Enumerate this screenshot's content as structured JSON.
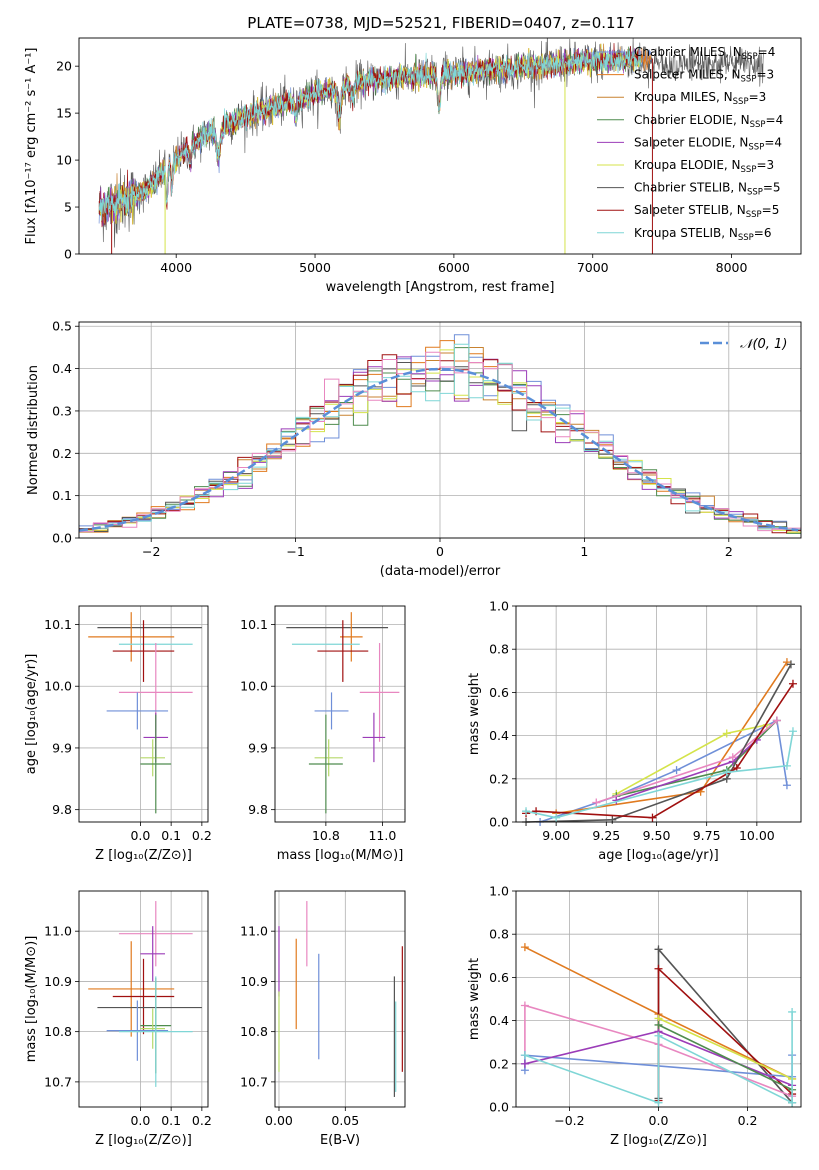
{
  "figure_title": "PLATE=0738, MJD=52521, FIBERID=0407, z=0.117",
  "colors": {
    "series": [
      "#6f8fd8",
      "#e07a1f",
      "#c88230",
      "#4f8c4f",
      "#9b3cb8",
      "#d4e34a",
      "#555555",
      "#a01010",
      "#7fd6d6"
    ],
    "alt_blue": "#6f8fd8",
    "alt_pink": "#e887c0",
    "alt_olive": "#b6d96a",
    "normal_curve": "#5a8fd8",
    "grid": "#b0b0b0"
  },
  "chart_data": [
    {
      "id": "spectrum",
      "type": "line",
      "xlabel": "wavelength [Angstrom, rest frame]",
      "ylabel": "Flux [fλ10⁻¹⁷ erg cm⁻² s⁻¹ A⁻¹]",
      "xlim": [
        3300,
        8500
      ],
      "ylim": [
        0,
        23
      ],
      "xticks": [
        4000,
        5000,
        6000,
        7000,
        8000
      ],
      "yticks": [
        0,
        5,
        10,
        15,
        20
      ],
      "grid": false,
      "legend": "right",
      "continuum_knots": [
        [
          3450,
          4.8
        ],
        [
          3650,
          5.8
        ],
        [
          3800,
          7.0
        ],
        [
          3950,
          9.5
        ],
        [
          4100,
          11.5
        ],
        [
          4300,
          13.5
        ],
        [
          4600,
          15.2
        ],
        [
          5000,
          17.0
        ],
        [
          5400,
          18.5
        ],
        [
          6000,
          19.3
        ],
        [
          6600,
          20.0
        ],
        [
          7000,
          20.5
        ],
        [
          7400,
          20.8
        ]
      ],
      "absorption_lines": [
        [
          3933,
          3.5,
          6
        ],
        [
          3968,
          3.0,
          6
        ],
        [
          4102,
          1.5,
          8
        ],
        [
          4304,
          3.0,
          15
        ],
        [
          4861,
          1.5,
          10
        ],
        [
          5175,
          3.0,
          12
        ],
        [
          5270,
          1.5,
          10
        ],
        [
          5893,
          3.5,
          10
        ]
      ],
      "legend_entries": [
        {
          "label": "Chabrier MILES, N",
          "sub": "SSP",
          "value": "=4",
          "color": "#6f8fd8"
        },
        {
          "label": "Salpeter MILES, N",
          "sub": "SSP",
          "value": "=3",
          "color": "#e07a1f"
        },
        {
          "label": "Kroupa MILES, N",
          "sub": "SSP",
          "value": "=3",
          "color": "#c88230"
        },
        {
          "label": "Chabrier ELODIE, N",
          "sub": "SSP",
          "value": "=4",
          "color": "#4f8c4f"
        },
        {
          "label": "Salpeter ELODIE, N",
          "sub": "SSP",
          "value": "=4",
          "color": "#9b3cb8"
        },
        {
          "label": "Kroupa ELODIE, N",
          "sub": "SSP",
          "value": "=3",
          "color": "#d4e34a"
        },
        {
          "label": "Chabrier STELIB, N",
          "sub": "SSP",
          "value": "=5",
          "color": "#555555"
        },
        {
          "label": "Salpeter STELIB, N",
          "sub": "SSP",
          "value": "=5",
          "color": "#a01010"
        },
        {
          "label": "Kroupa STELIB, N",
          "sub": "SSP",
          "value": "=6",
          "color": "#7fd6d6"
        }
      ]
    },
    {
      "id": "residuals",
      "type": "line",
      "xlabel": "(data-model)/error",
      "ylabel": "Normed distribution",
      "xlim": [
        -2.5,
        2.5
      ],
      "ylim": [
        0,
        0.51
      ],
      "xticks": [
        -2,
        -1,
        0,
        1,
        2
      ],
      "yticks": [
        0.0,
        0.1,
        0.2,
        0.3,
        0.4,
        0.5
      ],
      "grid": true,
      "legend": "top-right",
      "legend_label": "𝒩(0, 1)",
      "bin_width": 0.1
    },
    {
      "id": "age_vs_Z",
      "type": "scatter",
      "xlabel": "Z [log₁₀(Z/Z⊙)]",
      "ylabel": "age  [log₁₀(age/yr)]",
      "xlim": [
        -0.2,
        0.22
      ],
      "ylim": [
        9.78,
        10.13
      ],
      "xticks": [
        0.0,
        0.1,
        0.2
      ],
      "yticks": [
        9.8,
        9.9,
        10.0,
        10.1
      ],
      "grid": true,
      "points": [
        {
          "x": 0.03,
          "y": 10.095,
          "xerr": 0.17,
          "yerr": 0.0,
          "color": "#555555"
        },
        {
          "x": -0.03,
          "y": 10.08,
          "xerr": 0.14,
          "yerr": 0.04,
          "color": "#e07a1f"
        },
        {
          "x": 0.05,
          "y": 10.068,
          "xerr": 0.12,
          "yerr": 0.0,
          "color": "#7fd6d6"
        },
        {
          "x": 0.01,
          "y": 10.057,
          "xerr": 0.1,
          "yerr": 0.05,
          "color": "#a01010"
        },
        {
          "x": 0.05,
          "y": 9.99,
          "xerr": 0.12,
          "yerr": 0.08,
          "color": "#e887c0"
        },
        {
          "x": -0.01,
          "y": 9.96,
          "xerr": 0.1,
          "yerr": 0.03,
          "color": "#6f8fd8"
        },
        {
          "x": 0.05,
          "y": 9.917,
          "xerr": 0.04,
          "yerr": 0.04,
          "color": "#9b3cb8"
        },
        {
          "x": 0.04,
          "y": 9.884,
          "xerr": 0.04,
          "yerr": 0.03,
          "color": "#b6d96a"
        },
        {
          "x": 0.05,
          "y": 9.874,
          "xerr": 0.05,
          "yerr": 0.08,
          "color": "#4f8c4f"
        }
      ]
    },
    {
      "id": "age_vs_mass",
      "type": "scatter",
      "xlabel": "mass [log₁₀(M/M⊙)]",
      "ylabel": "",
      "xlim": [
        10.62,
        11.08
      ],
      "ylim": [
        9.78,
        10.13
      ],
      "xticks": [
        10.8,
        11.0
      ],
      "yticks": [
        9.8,
        9.9,
        10.0,
        10.1
      ],
      "grid": true,
      "points": [
        {
          "x": 10.84,
          "y": 10.095,
          "xerr": 0.18,
          "yerr": 0.0,
          "color": "#555555"
        },
        {
          "x": 10.89,
          "y": 10.08,
          "xerr": 0.04,
          "yerr": 0.04,
          "color": "#e07a1f"
        },
        {
          "x": 10.8,
          "y": 10.068,
          "xerr": 0.12,
          "yerr": 0.0,
          "color": "#7fd6d6"
        },
        {
          "x": 10.86,
          "y": 10.057,
          "xerr": 0.09,
          "yerr": 0.05,
          "color": "#a01010"
        },
        {
          "x": 10.99,
          "y": 9.99,
          "xerr": 0.07,
          "yerr": 0.08,
          "color": "#e887c0"
        },
        {
          "x": 10.82,
          "y": 9.96,
          "xerr": 0.06,
          "yerr": 0.03,
          "color": "#6f8fd8"
        },
        {
          "x": 10.97,
          "y": 9.917,
          "xerr": 0.04,
          "yerr": 0.04,
          "color": "#9b3cb8"
        },
        {
          "x": 10.81,
          "y": 9.884,
          "xerr": 0.05,
          "yerr": 0.03,
          "color": "#b6d96a"
        },
        {
          "x": 10.8,
          "y": 9.874,
          "xerr": 0.06,
          "yerr": 0.08,
          "color": "#4f8c4f"
        }
      ]
    },
    {
      "id": "mass_weight_vs_age",
      "type": "line",
      "xlabel": "age  [log₁₀(age/yr)]",
      "ylabel": "mass weight",
      "xlim": [
        8.8,
        10.22
      ],
      "ylim": [
        0,
        1.0
      ],
      "xticks": [
        9.0,
        9.25,
        9.5,
        9.75,
        10.0
      ],
      "yticks": [
        0.0,
        0.2,
        0.4,
        0.6,
        0.8,
        1.0
      ],
      "grid": true,
      "series": [
        {
          "color": "#6f8fd8",
          "x": [
            8.92,
            9.3,
            9.6,
            10.1,
            10.15
          ],
          "y": [
            0.0,
            0.12,
            0.24,
            0.47,
            0.17
          ]
        },
        {
          "color": "#e07a1f",
          "x": [
            9.0,
            9.72,
            10.15
          ],
          "y": [
            0.04,
            0.14,
            0.74
          ]
        },
        {
          "color": "#d4e34a",
          "x": [
            9.3,
            9.85,
            10.05
          ],
          "y": [
            0.13,
            0.41,
            0.45
          ]
        },
        {
          "color": "#4f8c4f",
          "x": [
            9.3,
            9.85,
            10.1
          ],
          "y": [
            0.12,
            0.24,
            0.47
          ]
        },
        {
          "color": "#9b3cb8",
          "x": [
            9.3,
            9.88,
            10.0
          ],
          "y": [
            0.1,
            0.28,
            0.38
          ]
        },
        {
          "color": "#e887c0",
          "x": [
            9.2,
            9.88,
            10.1
          ],
          "y": [
            0.09,
            0.3,
            0.47
          ]
        },
        {
          "color": "#555555",
          "x": [
            8.85,
            9.28,
            9.85,
            10.17
          ],
          "y": [
            0.0,
            0.01,
            0.2,
            0.73
          ]
        },
        {
          "color": "#a01010",
          "x": [
            8.85,
            8.9,
            9.48,
            9.9,
            10.18
          ],
          "y": [
            0.04,
            0.05,
            0.02,
            0.25,
            0.64
          ]
        },
        {
          "color": "#7fd6d6",
          "x": [
            8.85,
            9.0,
            9.85,
            10.15,
            10.18
          ],
          "y": [
            0.05,
            0.02,
            0.23,
            0.26,
            0.42
          ]
        }
      ]
    },
    {
      "id": "mass_vs_Z",
      "type": "scatter",
      "xlabel": "Z [log₁₀(Z/Z⊙)]",
      "ylabel": "mass [log₁₀(M/M⊙)]",
      "xlim": [
        -0.2,
        0.22
      ],
      "ylim": [
        10.65,
        11.08
      ],
      "xticks": [
        0.0,
        0.1,
        0.2
      ],
      "yticks": [
        10.7,
        10.8,
        10.9,
        11.0
      ],
      "grid": true,
      "points": [
        {
          "x": 0.05,
          "y": 10.995,
          "xerr": 0.12,
          "yerr": 0.065,
          "color": "#e887c0"
        },
        {
          "x": 0.04,
          "y": 10.955,
          "xerr": 0.04,
          "yerr": 0.055,
          "color": "#9b3cb8"
        },
        {
          "x": -0.03,
          "y": 10.885,
          "xerr": 0.14,
          "yerr": 0.095,
          "color": "#e07a1f"
        },
        {
          "x": 0.01,
          "y": 10.87,
          "xerr": 0.1,
          "yerr": 0.075,
          "color": "#a01010"
        },
        {
          "x": 0.03,
          "y": 10.848,
          "xerr": 0.17,
          "yerr": 0.0,
          "color": "#555555"
        },
        {
          "x": 0.05,
          "y": 10.812,
          "xerr": 0.05,
          "yerr": 0.095,
          "color": "#4f8c4f"
        },
        {
          "x": 0.04,
          "y": 10.806,
          "xerr": 0.04,
          "yerr": 0.04,
          "color": "#b6d96a"
        },
        {
          "x": -0.01,
          "y": 10.802,
          "xerr": 0.1,
          "yerr": 0.06,
          "color": "#6f8fd8"
        },
        {
          "x": 0.05,
          "y": 10.8,
          "xerr": 0.12,
          "yerr": 0.11,
          "color": "#7fd6d6"
        }
      ]
    },
    {
      "id": "ebv",
      "type": "scatter",
      "xlabel": "E(B-V)",
      "ylabel": "",
      "xlim": [
        -0.003,
        0.095
      ],
      "ylim": [
        10.65,
        11.08
      ],
      "xticks": [
        0.0,
        0.05
      ],
      "yticks": [
        10.7,
        10.8,
        10.9,
        11.0
      ],
      "grid": true,
      "points": [
        {
          "x": 0.0,
          "y": 10.94,
          "yerr": 0.07,
          "color": "#9b3cb8"
        },
        {
          "x": 0.0,
          "y": 10.8,
          "yerr": 0.08,
          "color": "#b6d96a"
        },
        {
          "x": 0.013,
          "y": 10.895,
          "yerr": 0.09,
          "color": "#e07a1f"
        },
        {
          "x": 0.021,
          "y": 10.995,
          "yerr": 0.065,
          "color": "#e887c0"
        },
        {
          "x": 0.03,
          "y": 10.85,
          "yerr": 0.105,
          "color": "#6f8fd8"
        },
        {
          "x": 0.087,
          "y": 10.79,
          "yerr": 0.12,
          "color": "#555555"
        },
        {
          "x": 0.088,
          "y": 10.77,
          "yerr": 0.09,
          "color": "#7fd6d6"
        },
        {
          "x": 0.093,
          "y": 10.845,
          "yerr": 0.125,
          "color": "#a01010"
        }
      ]
    },
    {
      "id": "mass_weight_vs_Z",
      "type": "line",
      "xlabel": "Z [log₁₀(Z/Z⊙)]",
      "ylabel": "mass weight",
      "xlim": [
        -0.32,
        0.32
      ],
      "ylim": [
        0,
        1.0
      ],
      "xticks": [
        -0.2,
        0.0,
        0.2
      ],
      "yticks": [
        0.0,
        0.2,
        0.4,
        0.6,
        0.8,
        1.0
      ],
      "grid": true,
      "series": [
        {
          "color": "#e07a1f",
          "x": [
            -0.3,
            0.0,
            0.3
          ],
          "y": [
            0.74,
            0.43,
            0.13
          ]
        },
        {
          "color": "#555555",
          "x": [
            0.0,
            0.0,
            0.3
          ],
          "y": [
            0.04,
            0.73,
            0.02
          ]
        },
        {
          "color": "#a01010",
          "x": [
            0.0,
            0.0,
            0.3
          ],
          "y": [
            0.03,
            0.64,
            0.06
          ]
        },
        {
          "color": "#e887c0",
          "x": [
            -0.3,
            -0.3,
            0.0,
            0.3
          ],
          "y": [
            0.24,
            0.47,
            0.29,
            0.05
          ]
        },
        {
          "color": "#6f8fd8",
          "x": [
            -0.3,
            -0.3,
            0.3,
            0.3
          ],
          "y": [
            0.17,
            0.24,
            0.14,
            0.24
          ]
        },
        {
          "color": "#9b3cb8",
          "x": [
            -0.3,
            0.0,
            0.3
          ],
          "y": [
            0.2,
            0.35,
            0.1
          ]
        },
        {
          "color": "#d4e34a",
          "x": [
            0.0,
            0.3
          ],
          "y": [
            0.41,
            0.13
          ]
        },
        {
          "color": "#4f8c4f",
          "x": [
            0.0,
            0.3
          ],
          "y": [
            0.38,
            0.08
          ]
        },
        {
          "color": "#7fd6d6",
          "x": [
            -0.3,
            0.0,
            0.0,
            0.3,
            0.3
          ],
          "y": [
            0.24,
            0.02,
            0.33,
            0.02,
            0.44
          ]
        }
      ]
    }
  ]
}
